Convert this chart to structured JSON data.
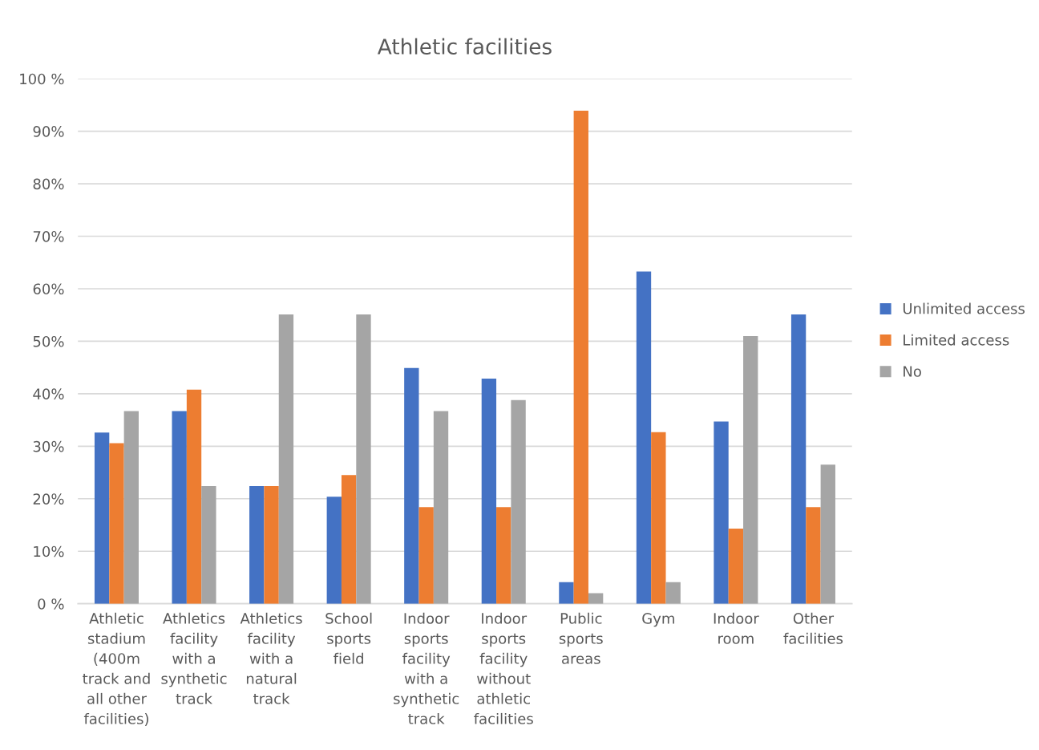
{
  "chart_data": {
    "type": "bar",
    "title": "Athletic facilities",
    "categories": [
      "Athletic\nstadium\n(400m\ntrack and\nall other\nfacilities)",
      "Athletics\nfacility\nwith a\nsynthetic\ntrack",
      "Athletics\nfacility\nwith a\nnatural\ntrack",
      "School\nsports\nfield",
      "Indoor\nsports\nfacility\nwith a\nsynthetic\ntrack",
      "Indoor\nsports\nfacility\nwithout\nathletic\nfacilities",
      "Public\nsports\nareas",
      "Gym",
      "Indoor\nroom",
      "Other\nfacilities"
    ],
    "series": [
      {
        "name": "Unlimited access",
        "color": "#4472c4",
        "values": [
          32.6,
          36.7,
          22.4,
          20.4,
          44.9,
          42.9,
          4.1,
          63.3,
          34.7,
          55.1
        ]
      },
      {
        "name": "Limited access",
        "color": "#ed7d31",
        "values": [
          30.6,
          40.8,
          22.4,
          24.5,
          18.4,
          18.4,
          93.9,
          32.7,
          14.3,
          18.4
        ]
      },
      {
        "name": "No",
        "color": "#a5a5a5",
        "values": [
          36.7,
          22.4,
          55.1,
          55.1,
          36.7,
          38.8,
          2.0,
          4.1,
          51.0,
          26.5
        ]
      }
    ],
    "ylim": [
      0,
      100
    ],
    "yticks": [
      {
        "value": 0,
        "label": "0 %"
      },
      {
        "value": 10,
        "label": "10%"
      },
      {
        "value": 20,
        "label": "20%"
      },
      {
        "value": 30,
        "label": "30%"
      },
      {
        "value": 40,
        "label": "40%"
      },
      {
        "value": 50,
        "label": "50%"
      },
      {
        "value": 60,
        "label": "60%"
      },
      {
        "value": 70,
        "label": "70%"
      },
      {
        "value": 80,
        "label": "80%"
      },
      {
        "value": 90,
        "label": "90%"
      },
      {
        "value": 100,
        "label": "100 %"
      }
    ],
    "grid": "y",
    "legend": "right"
  }
}
